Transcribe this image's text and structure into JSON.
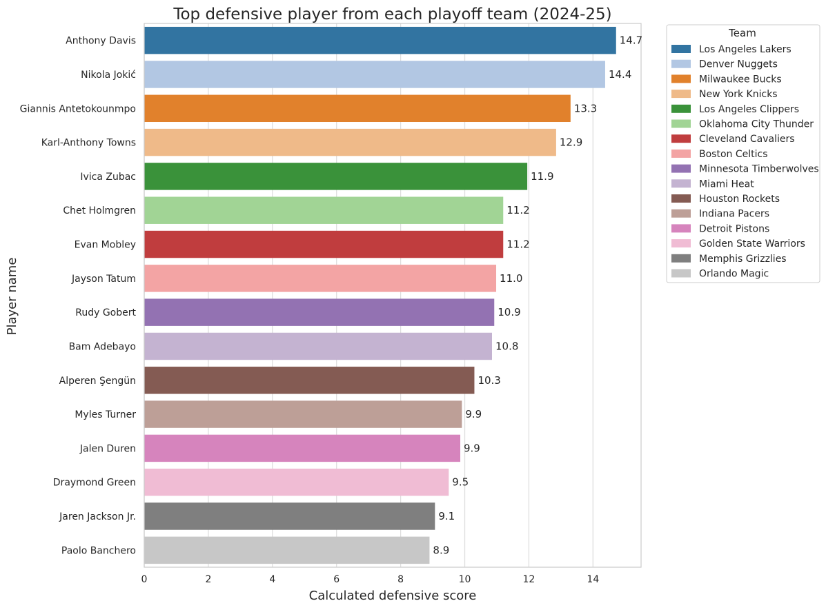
{
  "chart_data": {
    "type": "bar",
    "orientation": "horizontal",
    "title": "Top defensive player from each playoff team (2024-25)",
    "xlabel": "Calculated defensive score",
    "ylabel": "Player name",
    "xlim": [
      0,
      15.5
    ],
    "xticks": [
      "0",
      "2",
      "4",
      "6",
      "8",
      "10",
      "12",
      "14"
    ],
    "grid": "vertical",
    "legend_title": "Team",
    "legend_position": "outside right",
    "categories": [
      "Anthony Davis",
      "Nikola Jokić",
      "Giannis Antetokounmpo",
      "Karl-Anthony Towns",
      "Ivica Zubac",
      "Chet Holmgren",
      "Evan Mobley",
      "Jayson Tatum",
      "Rudy Gobert",
      "Bam Adebayo",
      "Alperen Şengün",
      "Myles Turner",
      "Jalen Duren",
      "Draymond Green",
      "Jaren Jackson Jr.",
      "Paolo Banchero"
    ],
    "values": [
      14.72,
      14.38,
      13.3,
      12.85,
      11.95,
      11.2,
      11.2,
      10.98,
      10.92,
      10.85,
      10.3,
      9.91,
      9.86,
      9.5,
      9.07,
      8.9
    ],
    "value_labels": [
      "14.7",
      "14.4",
      "13.3",
      "12.9",
      "11.9",
      "11.2",
      "11.2",
      "11.0",
      "10.9",
      "10.8",
      "10.3",
      "9.9",
      "9.9",
      "9.5",
      "9.1",
      "8.9"
    ],
    "teams": [
      "Los Angeles Lakers",
      "Denver Nuggets",
      "Milwaukee Bucks",
      "New York Knicks",
      "Los Angeles Clippers",
      "Oklahoma City Thunder",
      "Cleveland Cavaliers",
      "Boston Celtics",
      "Minnesota Timberwolves",
      "Miami Heat",
      "Houston Rockets",
      "Indiana Pacers",
      "Detroit Pistons",
      "Golden State Warriors",
      "Memphis Grizzlies",
      "Orlando Magic"
    ],
    "colors": [
      "#3274a1",
      "#b2c7e3",
      "#e1812c",
      "#efba89",
      "#3a923a",
      "#a1d495",
      "#c03d3e",
      "#f3a4a4",
      "#9372b2",
      "#c4b3d1",
      "#845b53",
      "#bd9f97",
      "#d684bd",
      "#f0bcd4",
      "#7f7f7f",
      "#c7c7c7"
    ]
  }
}
